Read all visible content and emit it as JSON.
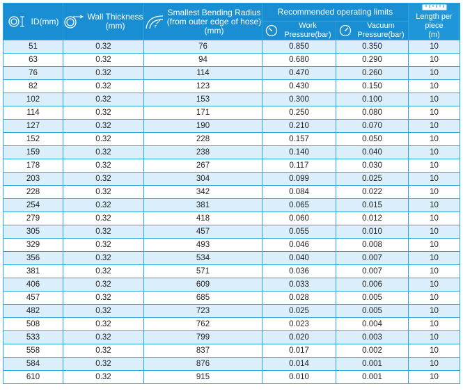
{
  "header": {
    "id_label": "ID(mm)",
    "wall_thickness_label": "Wall Thickness\n(mm)",
    "bending_radius_label": "Smallest Bending Radius\n(from outer edge of hose)\n(mm)",
    "operating_limits_label": "Recommended operating limits",
    "work_pressure_label": "Work Pressure(bar)",
    "vacuum_pressure_label": "Vacuum Pressure(bar)",
    "length_label": "Length per piece\n(m)",
    "icons": [
      "coil-id-icon",
      "coil-wall-icon",
      "bend-radius-icon",
      "gauge-icon",
      "gauge-icon",
      "ruler-icon"
    ]
  },
  "rows": [
    [
      "51",
      "0.32",
      "76",
      "0.850",
      "0.350",
      "10"
    ],
    [
      "63",
      "0.32",
      "94",
      "0.680",
      "0.290",
      "10"
    ],
    [
      "76",
      "0.32",
      "114",
      "0.470",
      "0.260",
      "10"
    ],
    [
      "82",
      "0.32",
      "123",
      "0.430",
      "0.150",
      "10"
    ],
    [
      "102",
      "0.32",
      "153",
      "0.300",
      "0.100",
      "10"
    ],
    [
      "114",
      "0.32",
      "171",
      "0.250",
      "0.080",
      "10"
    ],
    [
      "127",
      "0.32",
      "190",
      "0.210",
      "0.070",
      "10"
    ],
    [
      "152",
      "0.32",
      "228",
      "0.157",
      "0.050",
      "10"
    ],
    [
      "159",
      "0.32",
      "238",
      "0.140",
      "0.040",
      "10"
    ],
    [
      "178",
      "0.32",
      "267",
      "0.117",
      "0.030",
      "10"
    ],
    [
      "203",
      "0.32",
      "304",
      "0.099",
      "0.025",
      "10"
    ],
    [
      "228",
      "0.32",
      "342",
      "0.084",
      "0.022",
      "10"
    ],
    [
      "254",
      "0.32",
      "381",
      "0.065",
      "0.015",
      "10"
    ],
    [
      "279",
      "0.32",
      "418",
      "0.060",
      "0.012",
      "10"
    ],
    [
      "305",
      "0.32",
      "457",
      "0.055",
      "0.010",
      "10"
    ],
    [
      "329",
      "0.32",
      "493",
      "0.046",
      "0.008",
      "10"
    ],
    [
      "356",
      "0.32",
      "534",
      "0.040",
      "0.007",
      "10"
    ],
    [
      "381",
      "0.32",
      "571",
      "0.036",
      "0.007",
      "10"
    ],
    [
      "406",
      "0.32",
      "609",
      "0.033",
      "0.006",
      "10"
    ],
    [
      "457",
      "0.32",
      "685",
      "0.028",
      "0.005",
      "10"
    ],
    [
      "482",
      "0.32",
      "723",
      "0.025",
      "0.005",
      "10"
    ],
    [
      "508",
      "0.32",
      "762",
      "0.023",
      "0.004",
      "10"
    ],
    [
      "533",
      "0.32",
      "799",
      "0.020",
      "0.003",
      "10"
    ],
    [
      "558",
      "0.32",
      "837",
      "0.017",
      "0.002",
      "10"
    ],
    [
      "584",
      "0.32",
      "876",
      "0.014",
      "0.001",
      "10"
    ],
    [
      "610",
      "0.32",
      "915",
      "0.010",
      "0.001",
      "10"
    ]
  ],
  "colors": {
    "header_blue": "#1a8ed2",
    "row_light_blue": "#dbeefb",
    "border_blue": "#2aa6dc"
  }
}
